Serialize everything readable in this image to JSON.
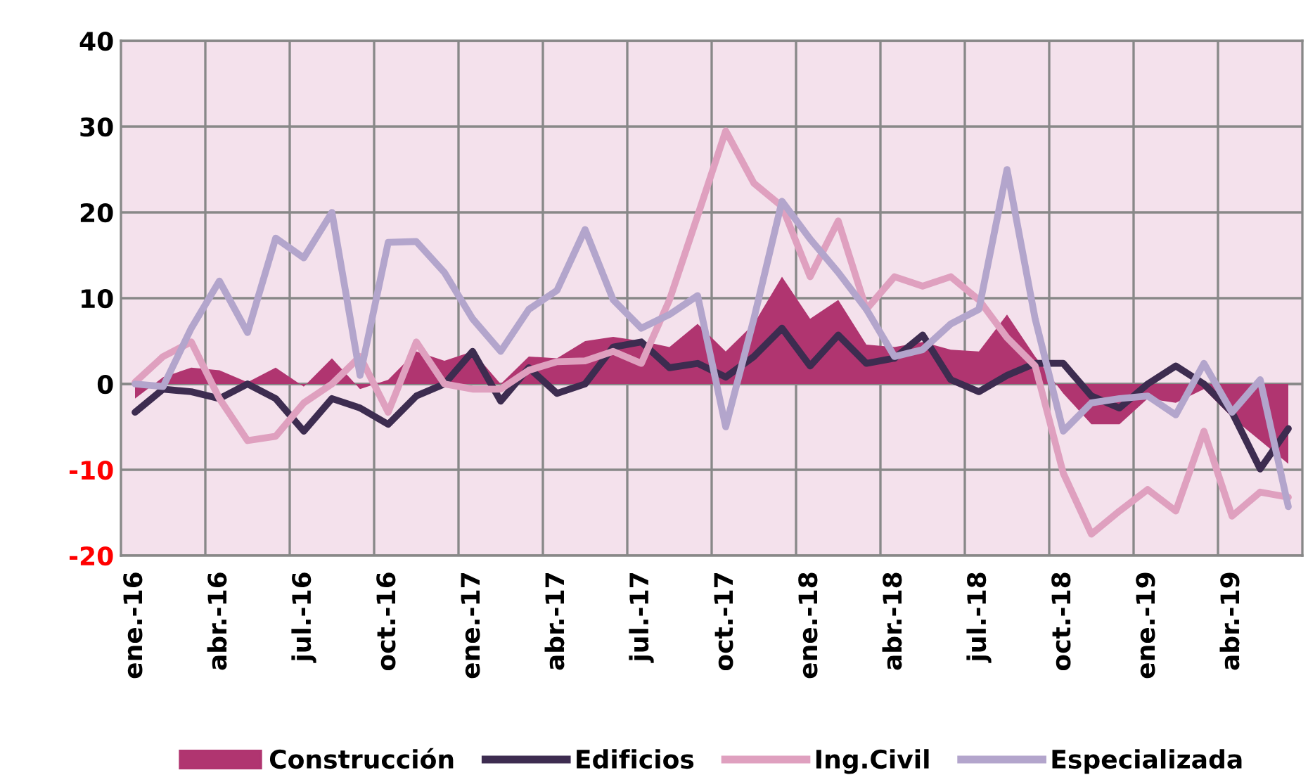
{
  "chart_data": {
    "type": "line",
    "categories": [
      "ene.-16",
      null,
      null,
      "abr.-16",
      null,
      null,
      "jul.-16",
      null,
      null,
      "oct.-16",
      null,
      null,
      "ene.-17",
      null,
      null,
      "abr.-17",
      null,
      null,
      "jul.-17",
      null,
      null,
      "oct.-17",
      null,
      null,
      "ene.-18",
      null,
      null,
      "abr.-18",
      null,
      null,
      "jul.-18",
      null,
      null,
      "oct.-18",
      null,
      null,
      "ene.-19",
      null,
      null,
      "abr.-19",
      null,
      null
    ],
    "series": [
      {
        "name": "Construcción",
        "type": "area",
        "color": "#b03570",
        "values": [
          -1.7,
          0.8,
          1.9,
          1.6,
          0.2,
          1.9,
          -0.3,
          3,
          -0.6,
          0.5,
          3.8,
          2.7,
          3.8,
          0,
          3.2,
          3,
          5,
          5.5,
          5,
          4.3,
          7,
          3.8,
          7,
          12.5,
          7.6,
          9.8,
          4.6,
          4.3,
          4.9,
          4,
          3.8,
          8.1,
          3.2,
          -1.1,
          -4.7,
          -4.7,
          -1.7,
          -2.2,
          -0.6,
          -3.9,
          -6.6,
          -9.3
        ]
      },
      {
        "name": "Edificios",
        "color": "#3d2c50",
        "values": [
          -3.3,
          -0.6,
          -0.9,
          -1.7,
          0,
          -1.7,
          -5.5,
          -1.7,
          -2.8,
          -4.7,
          -1.4,
          0,
          3.8,
          -2,
          1.9,
          -1.1,
          0,
          4.3,
          4.9,
          1.9,
          2.4,
          0.8,
          3.2,
          6.5,
          2.1,
          5.7,
          2.4,
          3,
          5.7,
          0.5,
          -0.9,
          1,
          2.4,
          2.4,
          -1.4,
          -2.8,
          0,
          2.1,
          0,
          -3.3,
          -9.9,
          -5.2
        ]
      },
      {
        "name": "Ing.Civil",
        "color": "#dfa0bf",
        "values": [
          0.2,
          3.2,
          4.9,
          -1.7,
          -6.6,
          -6.1,
          -2.2,
          0,
          3.2,
          -3.3,
          4.9,
          0,
          -0.6,
          -0.6,
          1.6,
          2.6,
          2.7,
          3.8,
          2.4,
          9.8,
          19.6,
          29.5,
          23.4,
          20.7,
          12.5,
          19,
          8.7,
          12.5,
          11.4,
          12.5,
          9.8,
          5.4,
          2.1,
          -10.4,
          -17.5,
          -14.8,
          -12.3,
          -14.8,
          -5.5,
          -15.4,
          -12.6,
          -13.2
        ]
      },
      {
        "name": "Especializada",
        "color": "#b3a5cc",
        "values": [
          0,
          -0.3,
          6.5,
          12,
          6,
          17,
          14.7,
          20,
          1,
          16.5,
          16.6,
          13,
          7.6,
          3.8,
          8.7,
          10.9,
          18,
          9.8,
          6.5,
          8.1,
          10.3,
          -5,
          7.6,
          21.3,
          16.9,
          13,
          8.7,
          3.2,
          4,
          7,
          8.7,
          25,
          7.6,
          -5.5,
          -2.2,
          -1.7,
          -1.4,
          -3.6,
          2.4,
          -3.3,
          0.5,
          -14.3
        ]
      }
    ],
    "ylim": [
      -20,
      40
    ],
    "yticks": [
      -20,
      -10,
      0,
      10,
      20,
      30,
      40
    ],
    "grid": true,
    "legend": "bottom",
    "line_style": "solid",
    "marker": "none"
  }
}
